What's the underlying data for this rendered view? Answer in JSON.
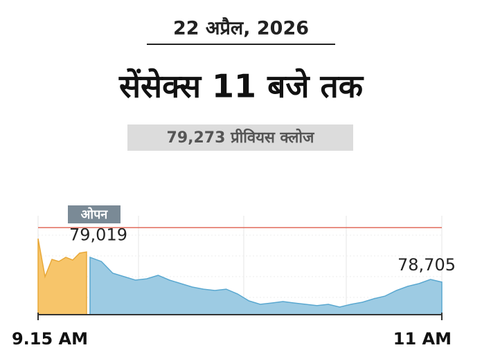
{
  "chart_data": {
    "type": "area",
    "date": "22 अप्रैल, 2026",
    "title": "सेंसेक्स 11 बजे तक",
    "reference": {
      "value": 79273,
      "label": "79,273 प्रीवियस क्लोज",
      "color": "#e06a5a"
    },
    "categories": [
      "9.15 AM",
      null,
      null,
      null,
      null,
      null,
      null,
      null,
      null,
      null,
      null,
      null,
      null,
      null,
      null,
      null,
      null,
      null,
      null,
      null,
      null,
      null,
      null,
      null,
      null,
      null,
      null,
      null,
      null,
      null,
      null,
      null,
      null,
      null,
      null,
      null,
      null,
      null,
      null,
      "11 AM"
    ],
    "series": [
      {
        "name": "ओपन",
        "color": "#f7c56a",
        "values": [
          79158,
          78762,
          78942,
          78920,
          78963,
          78935,
          79007,
          79019,
          null,
          null,
          null,
          null,
          null,
          null,
          null,
          null,
          null,
          null,
          null,
          null,
          null,
          null,
          null,
          null,
          null,
          null,
          null,
          null,
          null,
          null,
          null,
          null,
          null,
          null,
          null,
          null,
          null,
          null,
          null,
          null
        ],
        "value_labels": [
          null,
          null,
          null,
          null,
          null,
          null,
          null,
          "79,019",
          null,
          null,
          null,
          null,
          null,
          null,
          null,
          null,
          null,
          null,
          null,
          null,
          null,
          null,
          null,
          null,
          null,
          null,
          null,
          null,
          null,
          null,
          null,
          null,
          null,
          null,
          null,
          null,
          null,
          null,
          null,
          null
        ]
      },
      {
        "color": "#9dcbe3",
        "values": [
          null,
          null,
          null,
          null,
          null,
          null,
          null,
          null,
          78963,
          78920,
          78798,
          78762,
          78726,
          78740,
          78776,
          78726,
          78690,
          78654,
          78632,
          78618,
          78632,
          78582,
          78510,
          78474,
          78488,
          78503,
          78488,
          78474,
          78460,
          78474,
          78445,
          78474,
          78496,
          78532,
          78560,
          78618,
          78661,
          78690,
          78733,
          78705
        ],
        "value_labels": [
          null,
          null,
          null,
          null,
          null,
          null,
          null,
          null,
          null,
          null,
          null,
          null,
          null,
          null,
          null,
          null,
          null,
          null,
          null,
          null,
          null,
          null,
          null,
          null,
          null,
          null,
          null,
          null,
          null,
          null,
          null,
          null,
          null,
          null,
          null,
          null,
          null,
          null,
          null,
          "78,705"
        ]
      }
    ],
    "ylim": [
      78366,
      79396
    ],
    "grid": true
  }
}
